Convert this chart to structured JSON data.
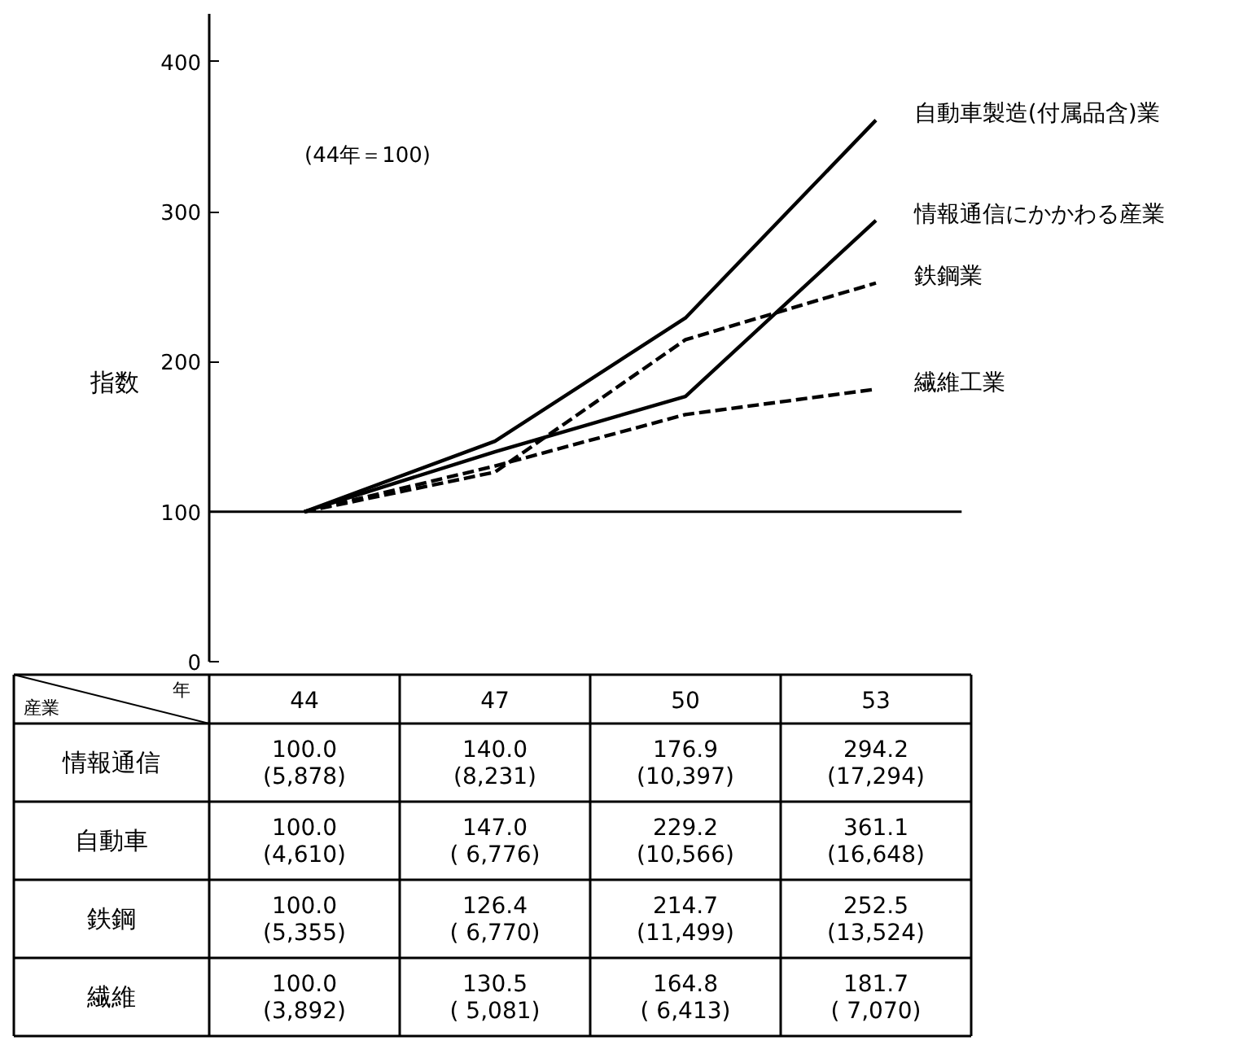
{
  "chart_data": {
    "type": "line",
    "ylabel": "指数",
    "categories": [
      "44",
      "47",
      "50",
      "53"
    ],
    "series": [
      {
        "name": "情報通信にかかわる産業",
        "color": "#000000",
        "line_style": "solid",
        "values": [
          100.0,
          140.0,
          176.9,
          294.2
        ],
        "value_labels": [
          "100.0\n(5,878)",
          "140.0\n(8,231)",
          "176.9\n(10,397)",
          "294.2\n(17,294)"
        ]
      },
      {
        "name": "自動車製造(付属品含)業",
        "color": "#000000",
        "line_style": "solid",
        "values": [
          100.0,
          147.0,
          229.2,
          361.1
        ],
        "value_labels": [
          "100.0\n(4,610)",
          "147.0\n( 6,776)",
          "229.2\n(10,566)",
          "361.1\n(16,648)"
        ]
      },
      {
        "name": "鉄鋼業",
        "color": "#000000",
        "line_style": "dashed",
        "values": [
          100.0,
          126.4,
          214.7,
          252.5
        ],
        "value_labels": [
          "100.0\n(5,355)",
          "126.4\n( 6,770)",
          "214.7\n(11,499)",
          "252.5\n(13,524)"
        ]
      },
      {
        "name": "繊維工業",
        "color": "#000000",
        "line_style": "dashed",
        "values": [
          100.0,
          130.5,
          164.8,
          181.7
        ],
        "value_labels": [
          "100.0\n(3,892)",
          "130.5\n( 5,081)",
          "164.8\n( 6,413)",
          "181.7\n( 7,070)"
        ]
      }
    ],
    "ylim": [
      0,
      432
    ],
    "yticks": [
      0,
      100,
      200,
      300,
      400
    ],
    "grid": false,
    "legend": false,
    "marker": "none",
    "ref_lines": [
      {
        "axis": "y",
        "value": 100,
        "color": "#000000"
      }
    ],
    "annotations": [
      "(44年＝100)",
      "産業",
      "年",
      "情報通信",
      "自動車",
      "鉄鋼",
      "繊維"
    ]
  }
}
